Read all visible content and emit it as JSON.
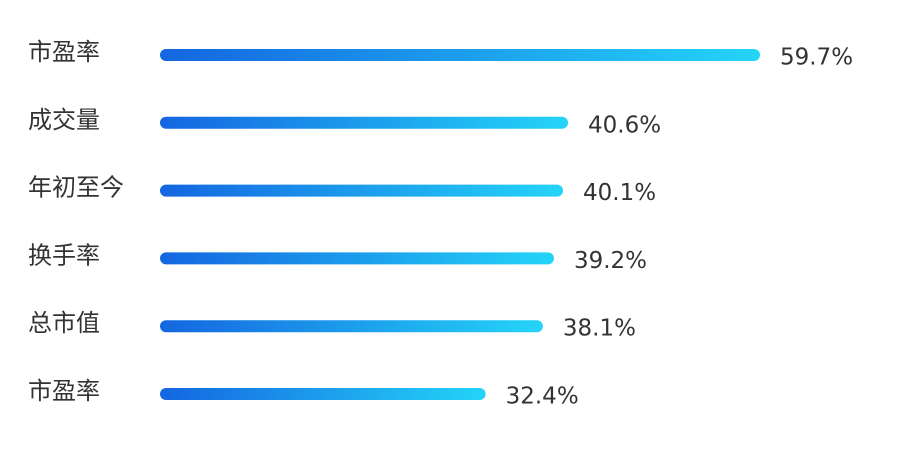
{
  "chart_data": {
    "type": "bar",
    "orientation": "horizontal",
    "categories": [
      "市盈率",
      "成交量",
      "年初至今",
      "换手率",
      "总市值",
      "市盈率"
    ],
    "values": [
      59.7,
      40.6,
      40.1,
      39.2,
      38.1,
      32.4
    ],
    "value_labels": [
      "59.7%",
      "40.6%",
      "40.1%",
      "39.2%",
      "38.1%",
      "32.4%"
    ],
    "colors": [
      "#1466e0",
      "#24d4f8"
    ],
    "xlim": [
      0,
      60
    ]
  }
}
